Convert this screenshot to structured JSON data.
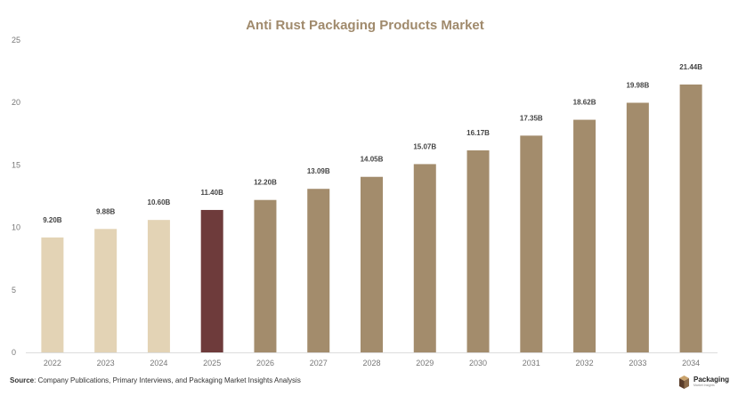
{
  "chart_data": {
    "type": "bar",
    "title": "Anti Rust Packaging Products Market",
    "categories": [
      "2022",
      "2023",
      "2024",
      "2025",
      "2026",
      "2027",
      "2028",
      "2029",
      "2030",
      "2031",
      "2032",
      "2033",
      "2034"
    ],
    "values": [
      9.2,
      9.88,
      10.6,
      11.4,
      12.2,
      13.09,
      14.05,
      15.07,
      16.17,
      17.35,
      18.62,
      19.98,
      21.44
    ],
    "data_labels": [
      "9.20B",
      "9.88B",
      "10.60B",
      "11.40B",
      "12.20B",
      "13.09B",
      "14.05B",
      "15.07B",
      "16.17B",
      "17.35B",
      "18.62B",
      "19.98B",
      "21.44B"
    ],
    "bar_colors": [
      "#e3d3b5",
      "#e3d3b5",
      "#e3d3b5",
      "#6e3b3b",
      "#a38c6c",
      "#a38c6c",
      "#a38c6c",
      "#a38c6c",
      "#a38c6c",
      "#a38c6c",
      "#a38c6c",
      "#a38c6c",
      "#a38c6c"
    ],
    "yticks": [
      0,
      5,
      10,
      15,
      20,
      25
    ],
    "ylim": [
      0,
      25
    ],
    "xlabel": "",
    "ylabel": "",
    "grid": false
  },
  "source": {
    "label": "Source",
    "text": ": Company Publications, Primary Interviews, and Packaging Market Insights Analysis"
  },
  "logo": {
    "main": "Packaging",
    "sub": "Market Insights"
  }
}
